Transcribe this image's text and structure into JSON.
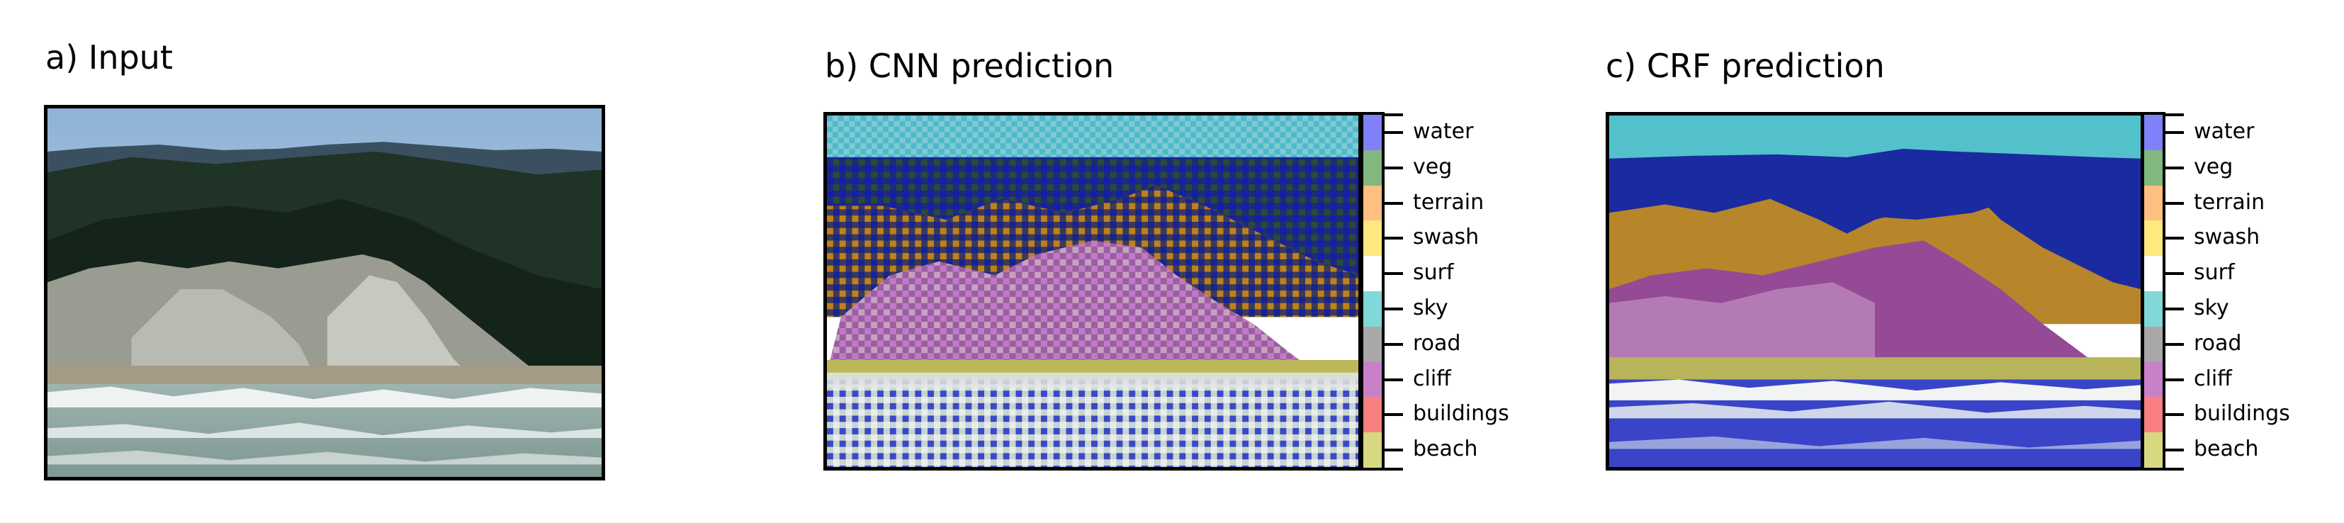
{
  "panels": [
    {
      "title": "a) Input"
    },
    {
      "title": "b) CNN prediction"
    },
    {
      "title": "c) CRF prediction"
    }
  ],
  "colorbar": {
    "classes": [
      {
        "label": "water",
        "color": "#8080f8"
      },
      {
        "label": "veg",
        "color": "#80b880"
      },
      {
        "label": "terrain",
        "color": "#ffbf80"
      },
      {
        "label": "swash",
        "color": "#ffe880"
      },
      {
        "label": "surf",
        "color": "#ffffff"
      },
      {
        "label": "sky",
        "color": "#80d8d8"
      },
      {
        "label": "road",
        "color": "#a8a8a8"
      },
      {
        "label": "cliff",
        "color": "#c880c8"
      },
      {
        "label": "buildings",
        "color": "#f88080"
      },
      {
        "label": "beach",
        "color": "#d8d880"
      }
    ]
  }
}
